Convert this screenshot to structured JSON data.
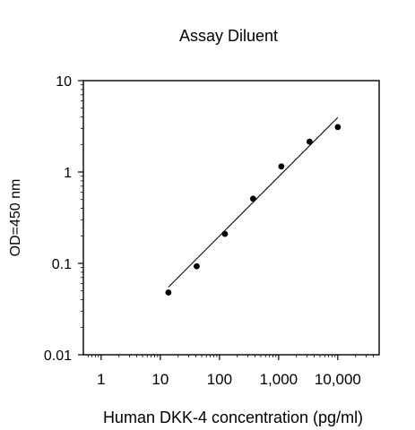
{
  "chart_data": {
    "type": "scatter",
    "title": "Assay Diluent",
    "xlabel": "Human DKK-4 concentration (pg/ml)",
    "ylabel": "OD=450 nm",
    "xscale": "log",
    "yscale": "log",
    "xlim": [
      0.5,
      50000
    ],
    "ylim": [
      0.01,
      10
    ],
    "xticks": [
      1,
      10,
      100,
      1000,
      10000
    ],
    "xtick_labels": [
      "1",
      "10",
      "100",
      "1,000",
      "10,000"
    ],
    "yticks": [
      0.01,
      0.1,
      1,
      10
    ],
    "ytick_labels": [
      "0.01",
      "0.1",
      "1",
      "10"
    ],
    "grid": false,
    "legend": "none",
    "series": [
      {
        "x": [
          13.7,
          41.2,
          123.5,
          370.4,
          1111,
          3333,
          10000
        ],
        "y": [
          0.048,
          0.093,
          0.21,
          0.51,
          1.15,
          2.15,
          3.1
        ],
        "marker": "circle",
        "color": "#000000"
      }
    ],
    "fit_line": {
      "x": [
        13.7,
        10000
      ],
      "y": [
        0.055,
        3.95
      ],
      "color": "#000000"
    }
  }
}
